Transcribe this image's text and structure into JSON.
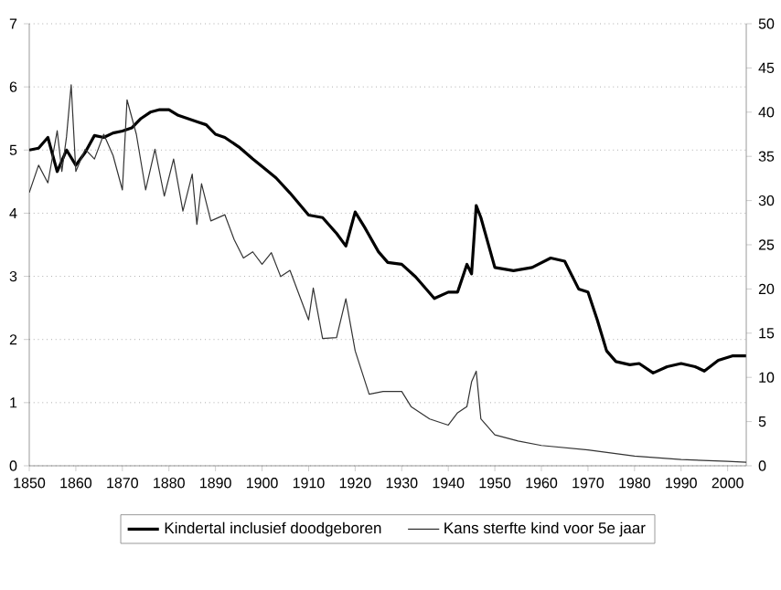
{
  "chart_data": {
    "type": "line",
    "xlim": [
      1850,
      2004
    ],
    "xticks": [
      1850,
      1860,
      1870,
      1880,
      1890,
      1900,
      1910,
      1920,
      1930,
      1940,
      1950,
      1960,
      1970,
      1980,
      1990,
      2000
    ],
    "ylim": [
      0,
      7
    ],
    "yticks": [
      0,
      1,
      2,
      3,
      4,
      5,
      6,
      7
    ],
    "y2lim": [
      0,
      50
    ],
    "y2ticks": [
      0,
      5,
      10,
      15,
      20,
      25,
      30,
      35,
      40,
      45,
      50
    ],
    "grid": "y",
    "legend": "bottom",
    "marker": "none",
    "line_style": "solid",
    "series": [
      {
        "name": "Kindertal inclusief doodgeboren",
        "color": "#000000",
        "x": [
          1850,
          1852,
          1854,
          1856,
          1858,
          1860,
          1862,
          1864,
          1866,
          1868,
          1870,
          1872,
          1874,
          1876,
          1878,
          1880,
          1882,
          1884,
          1886,
          1888,
          1890,
          1892,
          1895,
          1898,
          1900,
          1903,
          1906,
          1910,
          1913,
          1916,
          1918,
          1920,
          1922,
          1925,
          1927,
          1930,
          1933,
          1937,
          1940,
          1942,
          1944,
          1945,
          1946,
          1947,
          1950,
          1954,
          1958,
          1962,
          1965,
          1968,
          1970,
          1972,
          1974,
          1976,
          1979,
          1981,
          1984,
          1987,
          1990,
          1993,
          1995,
          1998,
          2001,
          2004
        ],
        "values": [
          5.0,
          5.03,
          5.2,
          4.66,
          5.0,
          4.76,
          4.96,
          5.23,
          5.2,
          5.27,
          5.3,
          5.35,
          5.5,
          5.6,
          5.64,
          5.64,
          5.55,
          5.5,
          5.45,
          5.4,
          5.25,
          5.2,
          5.05,
          4.86,
          4.74,
          4.56,
          4.32,
          3.97,
          3.93,
          3.68,
          3.48,
          4.02,
          3.78,
          3.39,
          3.22,
          3.19,
          2.99,
          2.65,
          2.75,
          2.75,
          3.19,
          3.04,
          4.12,
          3.93,
          3.14,
          3.09,
          3.14,
          3.29,
          3.24,
          2.8,
          2.75,
          2.31,
          1.82,
          1.65,
          1.6,
          1.62,
          1.47,
          1.57,
          1.62,
          1.57,
          1.5,
          1.67,
          1.74,
          1.74
        ]
      },
      {
        "name": "Kans sterfte kind voor 5e jaar",
        "color": "#333333",
        "axis": "y2",
        "x": [
          1850,
          1852,
          1854,
          1856,
          1857,
          1858,
          1859,
          1860,
          1862,
          1864,
          1866,
          1868,
          1870,
          1871,
          1873,
          1875,
          1877,
          1879,
          1881,
          1883,
          1885,
          1886,
          1887,
          1889,
          1892,
          1894,
          1896,
          1898,
          1900,
          1902,
          1904,
          1906,
          1908,
          1910,
          1911,
          1913,
          1916,
          1918,
          1920,
          1923,
          1926,
          1930,
          1932,
          1936,
          1940,
          1942,
          1944,
          1945,
          1946,
          1947,
          1950,
          1955,
          1960,
          1970,
          1980,
          1990,
          2000,
          2004
        ],
        "values": [
          30.9,
          34,
          32,
          37.9,
          33.3,
          37.2,
          43.1,
          33.3,
          35.8,
          34.7,
          37.5,
          35.1,
          31.2,
          41.4,
          37.5,
          31.2,
          35.8,
          30.5,
          34.7,
          28.8,
          33,
          27.3,
          31.9,
          27.7,
          28.4,
          25.6,
          23.5,
          24.2,
          22.8,
          24.1,
          21.4,
          22.1,
          19.3,
          16.5,
          20.1,
          14.4,
          14.5,
          18.9,
          13,
          8.1,
          8.4,
          8.4,
          6.7,
          5.3,
          4.6,
          6,
          6.7,
          9.5,
          10.7,
          5.3,
          3.5,
          2.8,
          2.3,
          1.8,
          1.1,
          0.7,
          0.5,
          0.4
        ]
      }
    ]
  }
}
